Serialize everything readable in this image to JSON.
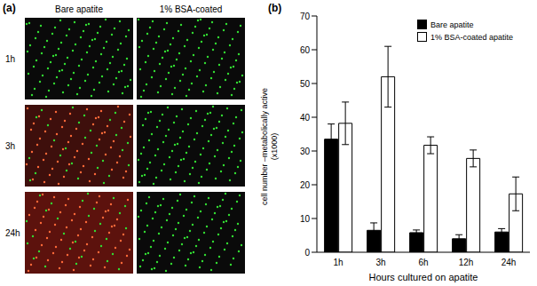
{
  "panel_a": {
    "label": "(a)",
    "columns": [
      "Bare apatite",
      "1% BSA-coated"
    ],
    "rows": [
      "1h",
      "3h",
      "24h"
    ]
  },
  "chart_data": {
    "type": "bar",
    "annotations": [
      "(b)"
    ],
    "x_label": "Hours cultured on apatite",
    "y_label": [
      "cell number –metabolically active",
      "(x1000)"
    ],
    "categories": [
      "1h",
      "3h",
      "6h",
      "12h",
      "24h"
    ],
    "series": [
      {
        "name": "Bare apatite",
        "color": "#000000",
        "values": [
          33.5,
          6.5,
          5.8,
          4,
          6
        ],
        "errors": [
          4.5,
          2.2,
          0.8,
          1.2,
          1
        ]
      },
      {
        "name": "1% BSA-coated apatite",
        "color": "#ffffff",
        "values": [
          38.2,
          52,
          31.7,
          27.8,
          17.3
        ],
        "errors": [
          6.3,
          9,
          2.5,
          2.5,
          5
        ]
      }
    ],
    "ylim": [
      0,
      70
    ],
    "yticks": [
      0,
      10,
      20,
      30,
      40,
      50,
      60,
      70
    ],
    "legend": "upper right"
  }
}
